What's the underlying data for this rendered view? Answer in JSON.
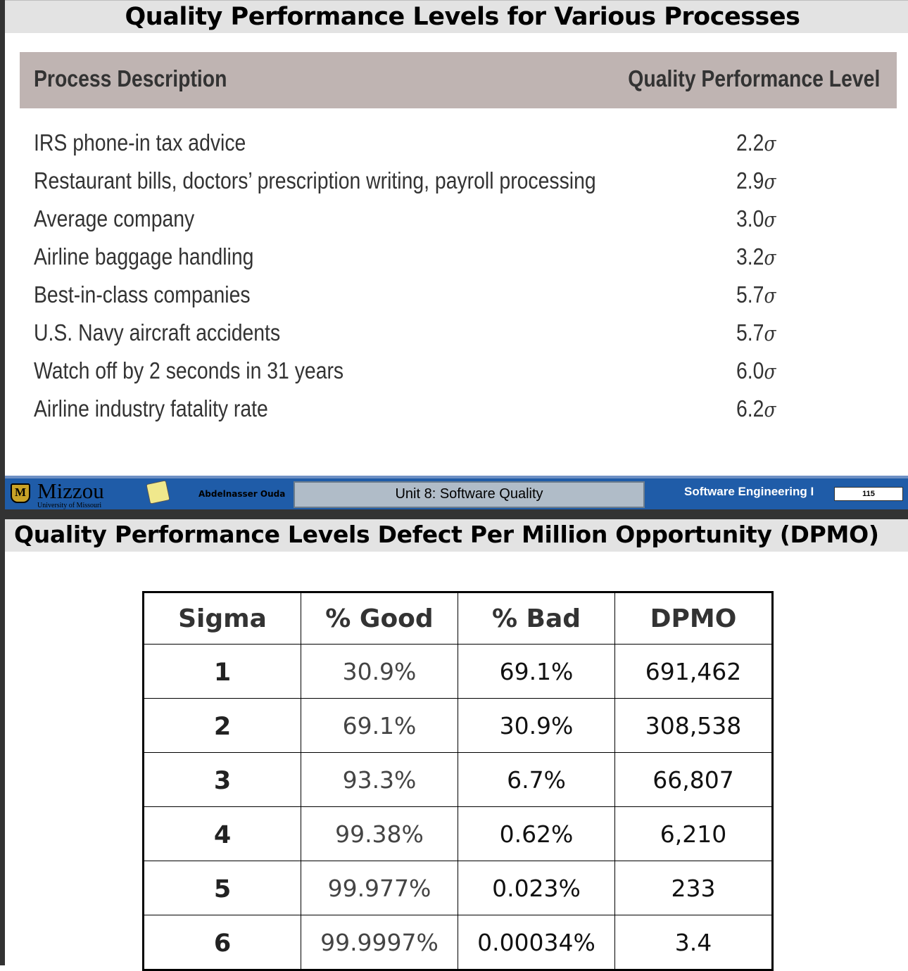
{
  "slide1": {
    "title": "Quality Performance Levels for Various Processes",
    "headers": {
      "process": "Process Description",
      "level": "Quality Performance Level"
    },
    "rows": [
      {
        "process": "IRS phone-in tax advice",
        "value": "2.2",
        "unit": "σ"
      },
      {
        "process": "Restaurant bills, doctors’ prescription writing, payroll processing",
        "value": "2.9",
        "unit": "σ"
      },
      {
        "process": "Average company",
        "value": "3.0",
        "unit": "σ"
      },
      {
        "process": "Airline baggage handling",
        "value": "3.2",
        "unit": "σ"
      },
      {
        "process": "Best-in-class companies",
        "value": "5.7",
        "unit": "σ"
      },
      {
        "process": "U.S. Navy aircraft accidents",
        "value": "5.7",
        "unit": "σ"
      },
      {
        "process": "Watch off by 2 seconds in 31 years",
        "value": "6.0",
        "unit": "σ"
      },
      {
        "process": "Airline industry fatality rate",
        "value": "6.2",
        "unit": "σ"
      }
    ]
  },
  "footer": {
    "logo_mark": "M",
    "logo_text": "Mizzou",
    "logo_sub": "University of Missouri",
    "author": "Abdelnasser Ouda",
    "unit": "Unit 8: Software Quality",
    "course": "Software Engineering I",
    "page": "115",
    "colors": {
      "bar": "#1f5ca8",
      "unit_box": "#b0bcc8"
    },
    "icons": [
      "mizzou-logo-icon",
      "sticky-note-icon"
    ]
  },
  "slide2": {
    "title": "Quality Performance Levels Defect Per Million Opportunity (DPMO)",
    "headers": [
      "Sigma",
      "% Good",
      "% Bad",
      "DPMO"
    ],
    "rows": [
      [
        "1",
        "30.9%",
        "69.1%",
        "691,462"
      ],
      [
        "2",
        "69.1%",
        "30.9%",
        "308,538"
      ],
      [
        "3",
        "93.3%",
        "6.7%",
        "66,807"
      ],
      [
        "4",
        "99.38%",
        "0.62%",
        "6,210"
      ],
      [
        "5",
        "99.977%",
        "0.023%",
        "233"
      ],
      [
        "6",
        "99.9997%",
        "0.00034%",
        "3.4"
      ]
    ]
  }
}
